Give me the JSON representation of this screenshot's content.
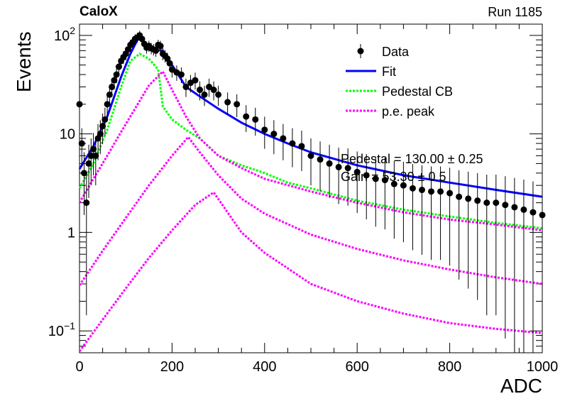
{
  "header": {
    "experiment": "CaloX",
    "run": "Run 1185"
  },
  "chart_data": {
    "type": "scatter",
    "title": "",
    "xlabel": "ADC",
    "ylabel": "Events",
    "xlim": [
      0,
      1000
    ],
    "ylim": [
      0.06,
      130
    ],
    "yscale": "log",
    "xticks": [
      "0",
      "200",
      "400",
      "600",
      "800",
      "1000"
    ],
    "yticks": [
      {
        "value": 0.1,
        "base": "10",
        "exp": "−1"
      },
      {
        "value": 1,
        "label": "1"
      },
      {
        "value": 10,
        "label": "10"
      },
      {
        "value": 100,
        "base": "10",
        "exp": "2"
      }
    ],
    "legend_position": "top-right",
    "legend": [
      {
        "label": "Data",
        "color": "#000000",
        "style": "marker"
      },
      {
        "label": "Fit",
        "color": "#0000ff",
        "style": "solid"
      },
      {
        "label": "Pedestal CB",
        "color": "#00ff00",
        "style": "dotted"
      },
      {
        "label": "p.e. peak",
        "color": "#ff00ff",
        "style": "dotted"
      }
    ],
    "fit_params_text": [
      "Pedestal = 130.00 ± 0.25",
      "Gain = 53.30 ± 0.5"
    ],
    "data": {
      "x": [
        0,
        5,
        10,
        15,
        20,
        25,
        30,
        35,
        40,
        45,
        50,
        55,
        60,
        65,
        70,
        75,
        80,
        85,
        90,
        95,
        100,
        105,
        110,
        115,
        120,
        125,
        130,
        135,
        140,
        145,
        150,
        155,
        160,
        165,
        170,
        175,
        180,
        185,
        190,
        195,
        200,
        210,
        220,
        230,
        240,
        250,
        260,
        270,
        280,
        290,
        300,
        320,
        340,
        360,
        380,
        400,
        420,
        440,
        460,
        480,
        500,
        520,
        540,
        560,
        580,
        600,
        620,
        640,
        660,
        680,
        700,
        720,
        740,
        760,
        780,
        800,
        820,
        840,
        860,
        880,
        900,
        920,
        940,
        960,
        980,
        1000
      ],
      "y": [
        20,
        8,
        4,
        2,
        5,
        6,
        7,
        6,
        9,
        10,
        12,
        14,
        20,
        25,
        30,
        35,
        40,
        48,
        55,
        60,
        65,
        72,
        80,
        85,
        92,
        95,
        100,
        92,
        82,
        75,
        78,
        74,
        72,
        70,
        80,
        78,
        65,
        62,
        58,
        52,
        45,
        42,
        40,
        30,
        33,
        35,
        28,
        25,
        30,
        28,
        25,
        21,
        20,
        15,
        14,
        11,
        10,
        9,
        8,
        7.5,
        6,
        5.5,
        5,
        4.6,
        4.5,
        4.1,
        3.8,
        3.5,
        3.4,
        3.1,
        3,
        2.8,
        2.7,
        2.6,
        2.6,
        2.5,
        2.3,
        2.2,
        2.1,
        2,
        2,
        1.9,
        1.8,
        1.7,
        1.6,
        1.5
      ]
    },
    "series": [
      {
        "name": "Fit",
        "color": "#0000ff",
        "x": [
          0,
          30,
          60,
          90,
          110,
          130,
          150,
          180,
          200,
          230,
          260,
          300,
          350,
          400,
          450,
          500,
          600,
          700,
          800,
          900,
          1000
        ],
        "y": [
          4.4,
          7.5,
          15,
          38,
          65,
          100,
          72,
          70,
          50,
          30,
          24,
          18,
          13,
          10,
          8,
          6.5,
          4.8,
          3.8,
          3.2,
          2.7,
          2.3
        ]
      },
      {
        "name": "Pedestal CB",
        "color": "#00ff00",
        "x": [
          0,
          30,
          60,
          90,
          110,
          130,
          150,
          170,
          180,
          200,
          230,
          260,
          300,
          350,
          400,
          450,
          500,
          600,
          700,
          800,
          900,
          1000
        ],
        "y": [
          2.8,
          5,
          11,
          30,
          55,
          65,
          58,
          45,
          19,
          14,
          11,
          9,
          6,
          4.8,
          4,
          3.2,
          2.8,
          2.1,
          1.7,
          1.45,
          1.25,
          1.1
        ]
      },
      {
        "name": "p.e. peak 1",
        "color": "#ff00ff",
        "x": [
          0,
          30,
          60,
          90,
          120,
          150,
          180,
          200,
          230,
          260,
          300,
          350,
          400,
          500,
          600,
          700,
          800,
          900,
          1000
        ],
        "y": [
          2,
          3.5,
          6,
          10.5,
          18,
          31,
          43,
          28,
          15,
          9,
          6,
          4.5,
          3.5,
          2.6,
          2,
          1.6,
          1.35,
          1.2,
          1.05
        ]
      },
      {
        "name": "p.e. peak 2",
        "color": "#ff00ff",
        "x": [
          0,
          50,
          100,
          150,
          200,
          235,
          260,
          300,
          350,
          400,
          500,
          600,
          700,
          800,
          900,
          1000
        ],
        "y": [
          0.29,
          0.65,
          1.4,
          3,
          6,
          9.3,
          6.5,
          3.8,
          2.2,
          1.55,
          0.95,
          0.68,
          0.52,
          0.42,
          0.35,
          0.3
        ]
      },
      {
        "name": "p.e. peak 3",
        "color": "#ff00ff",
        "x": [
          0,
          50,
          100,
          150,
          200,
          250,
          290,
          320,
          350,
          400,
          500,
          600,
          700,
          800,
          900,
          1000
        ],
        "y": [
          0.062,
          0.13,
          0.27,
          0.55,
          1.05,
          1.9,
          2.55,
          1.6,
          1,
          0.62,
          0.3,
          0.2,
          0.15,
          0.12,
          0.105,
          0.095
        ]
      }
    ]
  }
}
